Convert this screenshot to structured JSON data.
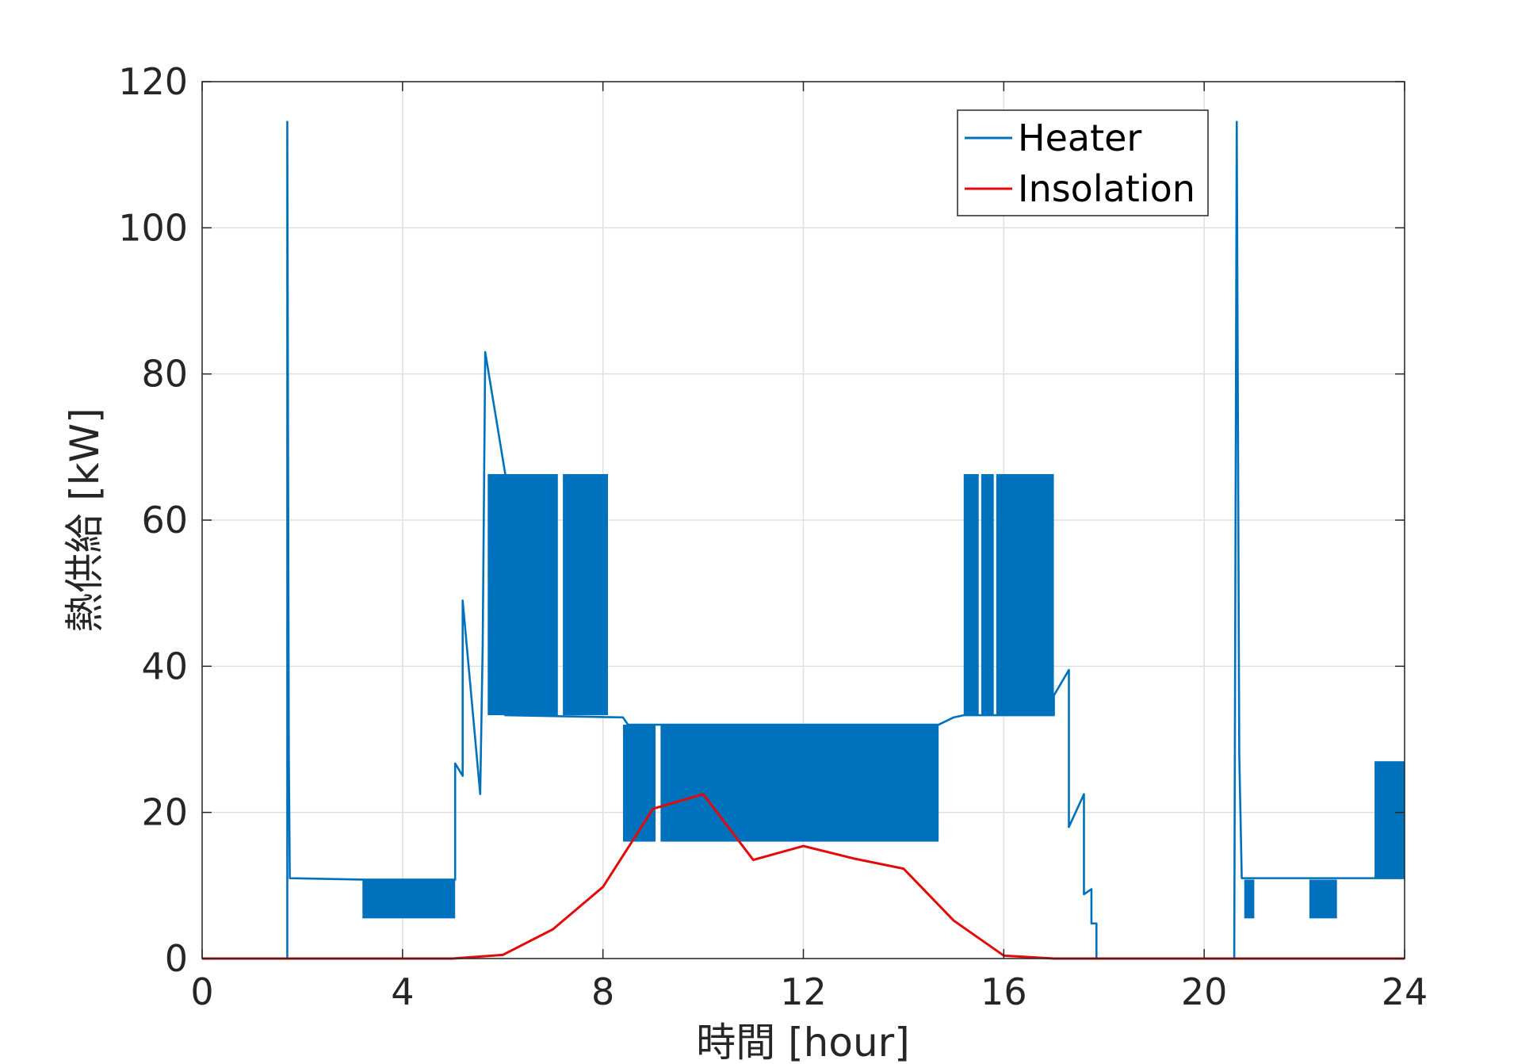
{
  "chart_data": {
    "type": "line",
    "xlabel": "時間 [hour]",
    "ylabel": "熱供給 [kW]",
    "xlim": [
      0,
      24
    ],
    "ylim": [
      0,
      120
    ],
    "xticks": [
      0,
      4,
      8,
      12,
      16,
      20,
      24
    ],
    "yticks": [
      0,
      20,
      40,
      60,
      80,
      100,
      120
    ],
    "xtick_labels": [
      "0",
      "4",
      "8",
      "12",
      "16",
      "20",
      "24"
    ],
    "ytick_labels": [
      "0",
      "20",
      "40",
      "60",
      "80",
      "100",
      "120"
    ],
    "grid": true,
    "legend_position": "top-right",
    "series": [
      {
        "name": "Heater",
        "color": "#0072BD",
        "style": "line",
        "points": [
          [
            0,
            0
          ],
          [
            1.7,
            0
          ],
          [
            1.7,
            114.5
          ],
          [
            1.73,
            28
          ],
          [
            1.75,
            11
          ],
          [
            3.2,
            10.8
          ],
          [
            5.05,
            10.8
          ],
          [
            5.05,
            26.7
          ],
          [
            5.2,
            25
          ],
          [
            5.2,
            49
          ],
          [
            5.55,
            22.5
          ],
          [
            5.6,
            43
          ],
          [
            5.65,
            83
          ],
          [
            6.05,
            66.3
          ],
          [
            6.05,
            33.3
          ],
          [
            8.4,
            33
          ],
          [
            8.5,
            32
          ],
          [
            14.7,
            32
          ],
          [
            15.0,
            33
          ],
          [
            15.2,
            33.3
          ],
          [
            17.0,
            33.3
          ],
          [
            17.0,
            36
          ],
          [
            17.3,
            39.5
          ],
          [
            17.3,
            18
          ],
          [
            17.6,
            22.5
          ],
          [
            17.6,
            8.8
          ],
          [
            17.75,
            9.5
          ],
          [
            17.75,
            4.8
          ],
          [
            17.85,
            4.8
          ],
          [
            17.85,
            0
          ],
          [
            20.6,
            0
          ],
          [
            20.65,
            114.5
          ],
          [
            20.7,
            28
          ],
          [
            20.75,
            11
          ],
          [
            23.4,
            11
          ],
          [
            24,
            11
          ]
        ]
      },
      {
        "name": "Heater",
        "color": "#0072BD",
        "style": "band",
        "bands": [
          {
            "x0": 3.2,
            "x1": 5.05,
            "y0": 5.5,
            "y1": 10.8
          },
          {
            "x0": 5.7,
            "x1": 7.1,
            "y0": 33.3,
            "y1": 66.3
          },
          {
            "x0": 7.2,
            "x1": 8.1,
            "y0": 33.3,
            "y1": 66.3
          },
          {
            "x0": 8.4,
            "x1": 9.05,
            "y0": 16,
            "y1": 32
          },
          {
            "x0": 9.15,
            "x1": 14.7,
            "y0": 16,
            "y1": 32
          },
          {
            "x0": 15.2,
            "x1": 15.5,
            "y0": 33.3,
            "y1": 66.3
          },
          {
            "x0": 15.55,
            "x1": 15.8,
            "y0": 33.3,
            "y1": 66.3
          },
          {
            "x0": 15.85,
            "x1": 17.0,
            "y0": 33.3,
            "y1": 66.3
          },
          {
            "x0": 20.8,
            "x1": 21.0,
            "y0": 5.5,
            "y1": 10.8
          },
          {
            "x0": 22.1,
            "x1": 22.65,
            "y0": 5.5,
            "y1": 10.8
          },
          {
            "x0": 23.4,
            "x1": 24.0,
            "y0": 11,
            "y1": 27
          }
        ]
      },
      {
        "name": "Insolation",
        "color": "#E30A0A",
        "style": "line",
        "points": [
          [
            0,
            0
          ],
          [
            5,
            0
          ],
          [
            6,
            0.5
          ],
          [
            7,
            4
          ],
          [
            8,
            9.8
          ],
          [
            9,
            20.5
          ],
          [
            10,
            22.5
          ],
          [
            11,
            13.5
          ],
          [
            12,
            15.4
          ],
          [
            13,
            13.7
          ],
          [
            14,
            12.3
          ],
          [
            15,
            5.2
          ],
          [
            16,
            0.4
          ],
          [
            17,
            0
          ],
          [
            24,
            0
          ]
        ]
      }
    ]
  }
}
